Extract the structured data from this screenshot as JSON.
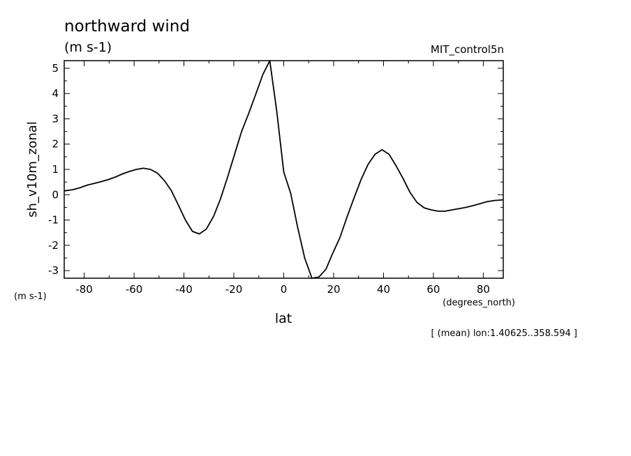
{
  "chart_data": {
    "type": "line",
    "title": "northward wind",
    "title_units": "(m s-1)",
    "run_label": "MIT_control5n",
    "ylabel": "sh_v10m_zonal",
    "y_units": "(m s-1)",
    "xlabel": "lat",
    "x_units": "(degrees_north)",
    "footnote": "[ (mean) lon:1.40625..358.594 ]",
    "xlim": [
      -88,
      88
    ],
    "ylim": [
      -3.3,
      5.3
    ],
    "x_ticks": [
      -80,
      -60,
      -40,
      -20,
      0,
      20,
      40,
      60,
      80
    ],
    "x_tick_labels": [
      "-80",
      "-60",
      "-40",
      "-20",
      "0",
      "20",
      "40",
      "60",
      "80"
    ],
    "y_ticks": [
      -3,
      -2,
      -1,
      0,
      1,
      2,
      3,
      4,
      5
    ],
    "y_tick_labels": [
      "-3",
      "-2",
      "-1",
      "0",
      "1",
      "2",
      "3",
      "4",
      "5"
    ],
    "grid": false,
    "line_color": "#000000",
    "x": [
      -88,
      -84.5,
      -81.6,
      -78.8,
      -75.9,
      -73.1,
      -70.3,
      -67.5,
      -64.7,
      -61.9,
      -59.1,
      -56.3,
      -53.4,
      -50.6,
      -47.8,
      -45.0,
      -42.2,
      -39.4,
      -36.6,
      -33.8,
      -31.0,
      -28.1,
      -25.3,
      -22.5,
      -19.7,
      -16.9,
      -14.1,
      -11.3,
      -8.4,
      -5.6,
      -2.8,
      0.0,
      2.8,
      5.6,
      8.4,
      11.3,
      14.1,
      16.9,
      19.7,
      22.5,
      25.3,
      28.1,
      31.0,
      33.8,
      36.6,
      39.4,
      42.2,
      45.0,
      47.8,
      50.6,
      53.4,
      56.3,
      59.1,
      61.9,
      64.7,
      67.5,
      70.3,
      73.1,
      75.9,
      78.8,
      81.6,
      84.4,
      88.0
    ],
    "y": [
      0.15,
      0.2,
      0.28,
      0.38,
      0.45,
      0.52,
      0.6,
      0.7,
      0.82,
      0.92,
      1.0,
      1.05,
      1.0,
      0.85,
      0.55,
      0.15,
      -0.42,
      -1.0,
      -1.45,
      -1.55,
      -1.35,
      -0.85,
      -0.15,
      0.7,
      1.6,
      2.5,
      3.2,
      3.95,
      4.75,
      5.3,
      3.3,
      0.9,
      0.05,
      -1.3,
      -2.5,
      -3.35,
      -3.25,
      -2.95,
      -2.3,
      -1.7,
      -0.9,
      -0.15,
      0.6,
      1.2,
      1.6,
      1.78,
      1.6,
      1.15,
      0.65,
      0.1,
      -0.3,
      -0.52,
      -0.6,
      -0.65,
      -0.65,
      -0.6,
      -0.55,
      -0.5,
      -0.43,
      -0.35,
      -0.27,
      -0.23,
      -0.2
    ]
  }
}
